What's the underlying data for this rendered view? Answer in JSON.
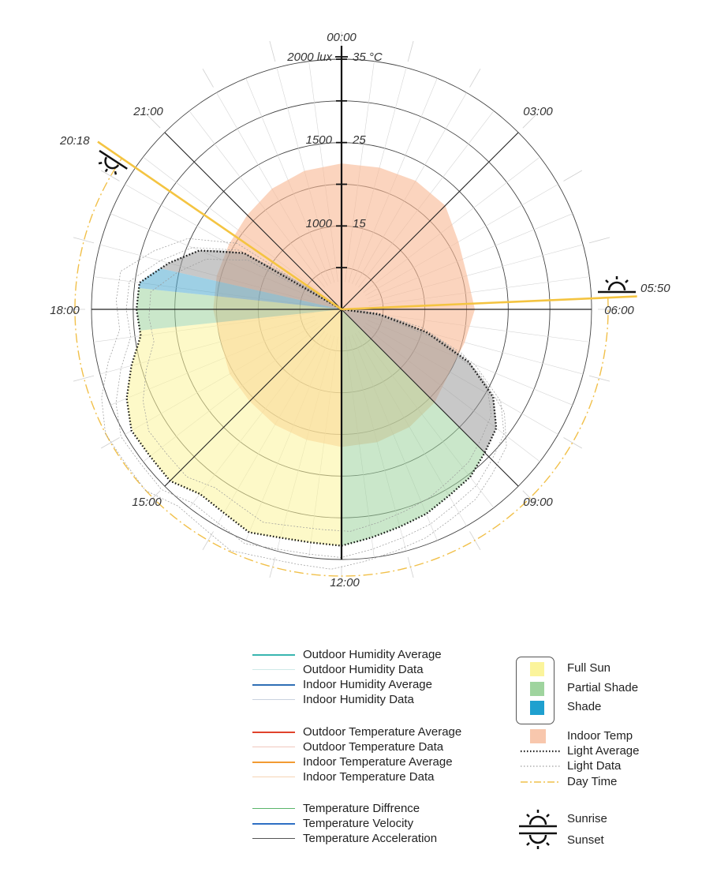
{
  "chart_data": {
    "type": "polar",
    "hour_labels": [
      {
        "text": "00:00",
        "hour": 0
      },
      {
        "text": "03:00",
        "hour": 3
      },
      {
        "text": "06:00",
        "hour": 6
      },
      {
        "text": "09:00",
        "hour": 9
      },
      {
        "text": "12:00",
        "hour": 12
      },
      {
        "text": "15:00",
        "hour": 15
      },
      {
        "text": "18:00",
        "hour": 18
      },
      {
        "text": "21:00",
        "hour": 21
      }
    ],
    "radial_axis_lux": {
      "labels": [
        "1000",
        "1500",
        "2000 lux"
      ],
      "values": [
        1000,
        1500,
        2000
      ],
      "range": [
        0,
        2000
      ]
    },
    "radial_axis_temp": {
      "labels": [
        "15",
        "25",
        "35 °C"
      ],
      "values": [
        15,
        25,
        35
      ],
      "range": [
        5,
        35
      ]
    },
    "sunrise": {
      "text": "05:50",
      "hour": 5.833
    },
    "sunset": {
      "text": "20:18",
      "hour": 20.3
    },
    "indoor_temp": {
      "hours": [
        0,
        1,
        2,
        3,
        4,
        5,
        6,
        7,
        8,
        9,
        10,
        11,
        12,
        13,
        14,
        15,
        16,
        17,
        18,
        19,
        20,
        21,
        22,
        23
      ],
      "values": [
        22.5,
        22.6,
        22.8,
        22.6,
        21.2,
        20.6,
        21.0,
        20.3,
        20.0,
        20.8,
        21.3,
        21.5,
        21.5,
        21.2,
        21.0,
        20.6,
        20.5,
        20.0,
        20.4,
        20.5,
        20.6,
        21.0,
        21.7,
        22.2
      ],
      "color": "#f8b996"
    },
    "light_average": {
      "hours": [
        5.83,
        6.5,
        7,
        7.5,
        8,
        8.5,
        9,
        9.5,
        10,
        10.5,
        11,
        11.5,
        12,
        12.5,
        13,
        13.5,
        14,
        14.5,
        15,
        15.5,
        16,
        16.5,
        17,
        17.5,
        18,
        18.5,
        19,
        19.5,
        20,
        20.3
      ],
      "lux": [
        0,
        300,
        700,
        1100,
        1400,
        1560,
        1620,
        1690,
        1720,
        1770,
        1800,
        1840,
        1890,
        1880,
        1890,
        1930,
        1880,
        1860,
        1940,
        1930,
        1940,
        1860,
        1740,
        1620,
        1640,
        1630,
        1430,
        1230,
        900,
        0
      ]
    },
    "light_zones": [
      {
        "name": "Full Sun",
        "from": 12.0,
        "to": 17.6,
        "color": "#fbf49b"
      },
      {
        "name": "Partial Shade",
        "from": 9.0,
        "to": 12.0,
        "color": "#9fd49e"
      },
      {
        "name": "Partial Shade",
        "from": 17.6,
        "to": 18.4,
        "color": "#9fd49e"
      },
      {
        "name": "Shade",
        "from": 18.4,
        "to": 18.85,
        "color": "#4ea9cf"
      },
      {
        "name": "Shade (dark)",
        "from": 18.85,
        "to": 20.3,
        "color": "#9a9a9a"
      },
      {
        "name": "Shade (dark)",
        "from": 5.83,
        "to": 9.0,
        "color": "#9a9a9a"
      }
    ]
  },
  "legend": {
    "lines": [
      {
        "label": "Outdoor Humidity Average",
        "color": "#39b6b0",
        "style": "solid",
        "width": 2
      },
      {
        "label": "Outdoor Humidity Data",
        "color": "#cfe9e8",
        "style": "solid",
        "width": 1
      },
      {
        "label": "Indoor Humidity Average",
        "color": "#2f6fb5",
        "style": "solid",
        "width": 2
      },
      {
        "label": "Indoor Humidity Data",
        "color": "#c9d3df",
        "style": "solid",
        "width": 1
      },
      {
        "label": "Outdoor Temperature Average",
        "color": "#e0432c",
        "style": "solid",
        "width": 2
      },
      {
        "label": "Outdoor Temperature Data",
        "color": "#f0c8bd",
        "style": "solid",
        "width": 1
      },
      {
        "label": "Indoor Temperature Average",
        "color": "#f29b32",
        "style": "solid",
        "width": 2
      },
      {
        "label": "Indoor Temperature Data",
        "color": "#f6d3b5",
        "style": "solid",
        "width": 1
      },
      {
        "label": "Temperature Diffrence",
        "color": "#5ab56a",
        "style": "solid",
        "width": 1
      },
      {
        "label": "Temperature  Velocity",
        "color": "#2e6fc4",
        "style": "solid",
        "width": 2
      },
      {
        "label": "Temperature  Acceleration",
        "color": "#555555",
        "style": "solid",
        "width": 1
      }
    ],
    "zones": [
      {
        "label": "Full Sun",
        "color": "#fbf49b"
      },
      {
        "label": "Partial Shade",
        "color": "#9fd49e"
      },
      {
        "label": "Shade",
        "color": "#1fa0cf"
      }
    ],
    "others": [
      {
        "label": "Indoor Temp",
        "kind": "swatch",
        "color": "#f8c7ad"
      },
      {
        "label": "Light Average",
        "kind": "dotted-bold",
        "color": "#222222"
      },
      {
        "label": "Light Data",
        "kind": "dotted-thin",
        "color": "#888888"
      },
      {
        "label": "Day Time",
        "kind": "dashdot",
        "color": "#f1c04a"
      }
    ],
    "sun": [
      {
        "label": "Sunrise",
        "icon": "sunrise-icon"
      },
      {
        "label": "Sunset",
        "icon": "sunset-icon"
      }
    ]
  }
}
